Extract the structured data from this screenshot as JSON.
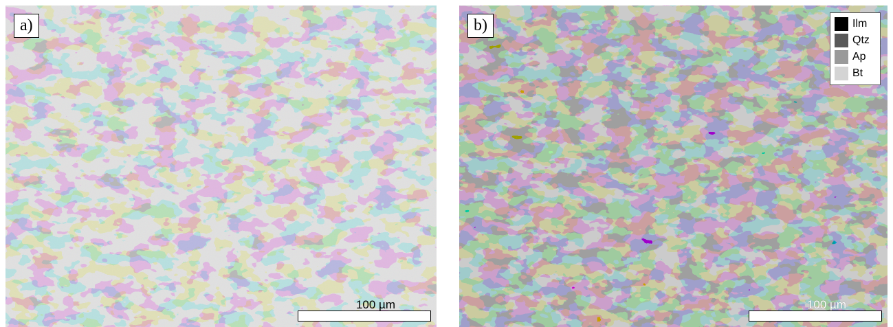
{
  "panels": [
    {
      "id": "a",
      "label": "a)",
      "scalebar": {
        "text": "100 µm"
      }
    },
    {
      "id": "b",
      "label": "b)",
      "scalebar": {
        "text": "100 µm"
      },
      "legend": [
        {
          "label": "Ilm",
          "color": "#000000"
        },
        {
          "label": "Qtz",
          "color": "#595959"
        },
        {
          "label": "Ap",
          "color": "#9a9a9a"
        },
        {
          "label": "Bt",
          "color": "#d4d4d4"
        }
      ]
    }
  ],
  "colors": {
    "panel_a_dark": "#7a7a7a",
    "panel_a_light": "#c9c9c9",
    "panel_b_qtz": "#595959",
    "panel_b_ap": "#9a9a9a",
    "panel_b_bt": "#d4d4d4",
    "panel_b_ilm": "#000000"
  }
}
